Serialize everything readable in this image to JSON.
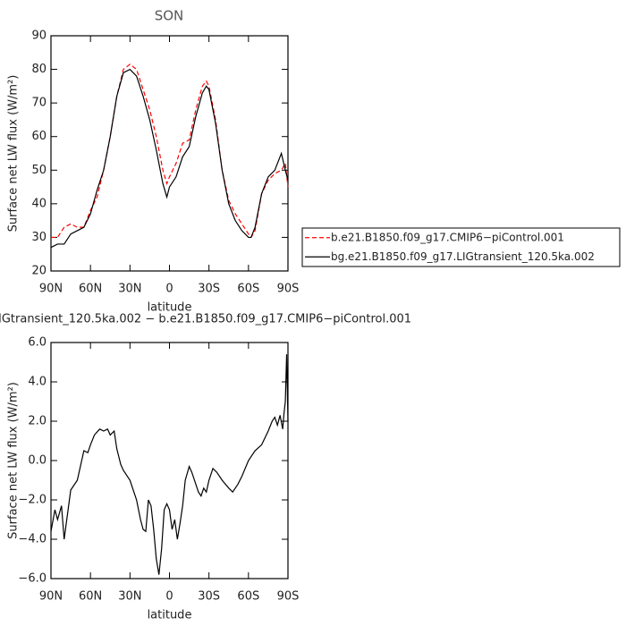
{
  "chart_data": [
    {
      "type": "line",
      "title": "SON",
      "xlabel": "latitude",
      "ylabel": "Surface net LW flux (W/m²)",
      "x": [
        90,
        85,
        80,
        75,
        70,
        65,
        60,
        55,
        50,
        45,
        40,
        35,
        30,
        25,
        20,
        15,
        10,
        5,
        2,
        0,
        -5,
        -10,
        -15,
        -20,
        -25,
        -28,
        -30,
        -35,
        -40,
        -45,
        -50,
        -55,
        -60,
        -62,
        -65,
        -70,
        -75,
        -80,
        -85,
        -88,
        -90
      ],
      "series": [
        {
          "name": "b.e21.B1850.f09_g17.CMIP6−piControl.001",
          "color": "#ff0000",
          "dashed": true,
          "values": [
            30,
            30,
            33,
            34,
            33,
            33,
            38,
            42,
            50,
            60,
            72,
            80,
            81.5,
            80,
            74,
            68,
            60,
            50,
            46,
            48,
            52,
            58,
            59,
            68,
            75,
            76.5,
            75,
            65,
            50,
            41,
            37,
            34,
            31,
            30,
            32,
            43,
            47,
            49,
            50,
            52,
            45
          ]
        },
        {
          "name": "bg.e21.B1850.f09_g17.LIGtransient_120.5ka.002",
          "color": "#000000",
          "dashed": false,
          "values": [
            27,
            28,
            28,
            31,
            32,
            33,
            37,
            44,
            50,
            60,
            72,
            79,
            80,
            78,
            72,
            65,
            56,
            46,
            42,
            45,
            48,
            54,
            57,
            66,
            73,
            75,
            74,
            64,
            50,
            40,
            35,
            32,
            30,
            30,
            33,
            43,
            48,
            50,
            55,
            50,
            47
          ]
        }
      ],
      "xlim": [
        90,
        -90
      ],
      "xticks": [
        {
          "value": 90,
          "label": "90N"
        },
        {
          "value": 60,
          "label": "60N"
        },
        {
          "value": 30,
          "label": "30N"
        },
        0,
        {
          "value": -30,
          "label": "30S"
        },
        {
          "value": -60,
          "label": "60S"
        },
        {
          "value": -90,
          "label": "90S"
        }
      ],
      "ylim": [
        20,
        90
      ],
      "yticks": [
        20,
        30,
        40,
        50,
        60,
        70,
        80,
        90
      ],
      "legend": "outside-right"
    },
    {
      "type": "line",
      "title": "IGtransient_120.5ka.002 − b.e21.B1850.f09_g17.CMIP6−piControl.001",
      "xlabel": "latitude",
      "ylabel": "Surface net LW flux (W/m²)",
      "x": [
        90,
        87,
        85,
        82,
        80,
        78,
        75,
        70,
        65,
        62,
        60,
        57,
        53,
        50,
        47,
        45,
        42,
        40,
        37,
        35,
        30,
        25,
        22,
        20,
        18,
        16,
        14,
        12,
        10,
        8,
        6,
        4,
        2,
        0,
        -2,
        -4,
        -6,
        -8,
        -10,
        -12,
        -15,
        -17,
        -20,
        -22,
        -24,
        -26,
        -28,
        -30,
        -33,
        -36,
        -40,
        -45,
        -48,
        -52,
        -55,
        -60,
        -65,
        -70,
        -75,
        -78,
        -80,
        -82,
        -84,
        -86,
        -87,
        -88,
        -89,
        -90
      ],
      "values": [
        -3.6,
        -2.5,
        -3.0,
        -2.3,
        -4.0,
        -3.0,
        -1.5,
        -1.0,
        0.5,
        0.4,
        0.8,
        1.3,
        1.6,
        1.5,
        1.6,
        1.3,
        1.5,
        0.6,
        -0.2,
        -0.5,
        -1.0,
        -2.0,
        -3.0,
        -3.5,
        -3.6,
        -2.0,
        -2.3,
        -3.5,
        -5.0,
        -5.8,
        -4.5,
        -2.5,
        -2.2,
        -2.5,
        -3.5,
        -3.0,
        -4.0,
        -3.2,
        -2.3,
        -1.0,
        -0.3,
        -0.6,
        -1.2,
        -1.6,
        -1.8,
        -1.4,
        -1.6,
        -1.0,
        -0.4,
        -0.6,
        -1.0,
        -1.4,
        -1.6,
        -1.2,
        -0.8,
        0.0,
        0.5,
        0.8,
        1.5,
        2.0,
        2.2,
        1.8,
        2.3,
        1.6,
        2.4,
        3.0,
        5.4,
        2.0
      ],
      "color": "#000000",
      "xlim": [
        90,
        -90
      ],
      "xticks": [
        {
          "value": 90,
          "label": "90N"
        },
        {
          "value": 60,
          "label": "60N"
        },
        {
          "value": 30,
          "label": "30N"
        },
        0,
        {
          "value": -30,
          "label": "30S"
        },
        {
          "value": -60,
          "label": "60S"
        },
        {
          "value": -90,
          "label": "90S"
        }
      ],
      "ylim": [
        -6,
        6
      ],
      "yticks": [
        {
          "value": -6,
          "label": "−6.0"
        },
        {
          "value": -4,
          "label": "−4.0"
        },
        {
          "value": -2,
          "label": "−2.0"
        },
        {
          "value": 0,
          "label": "0.0"
        },
        {
          "value": 2,
          "label": "2.0"
        },
        {
          "value": 4,
          "label": "4.0"
        },
        {
          "value": 6,
          "label": "6.0"
        }
      ]
    }
  ]
}
